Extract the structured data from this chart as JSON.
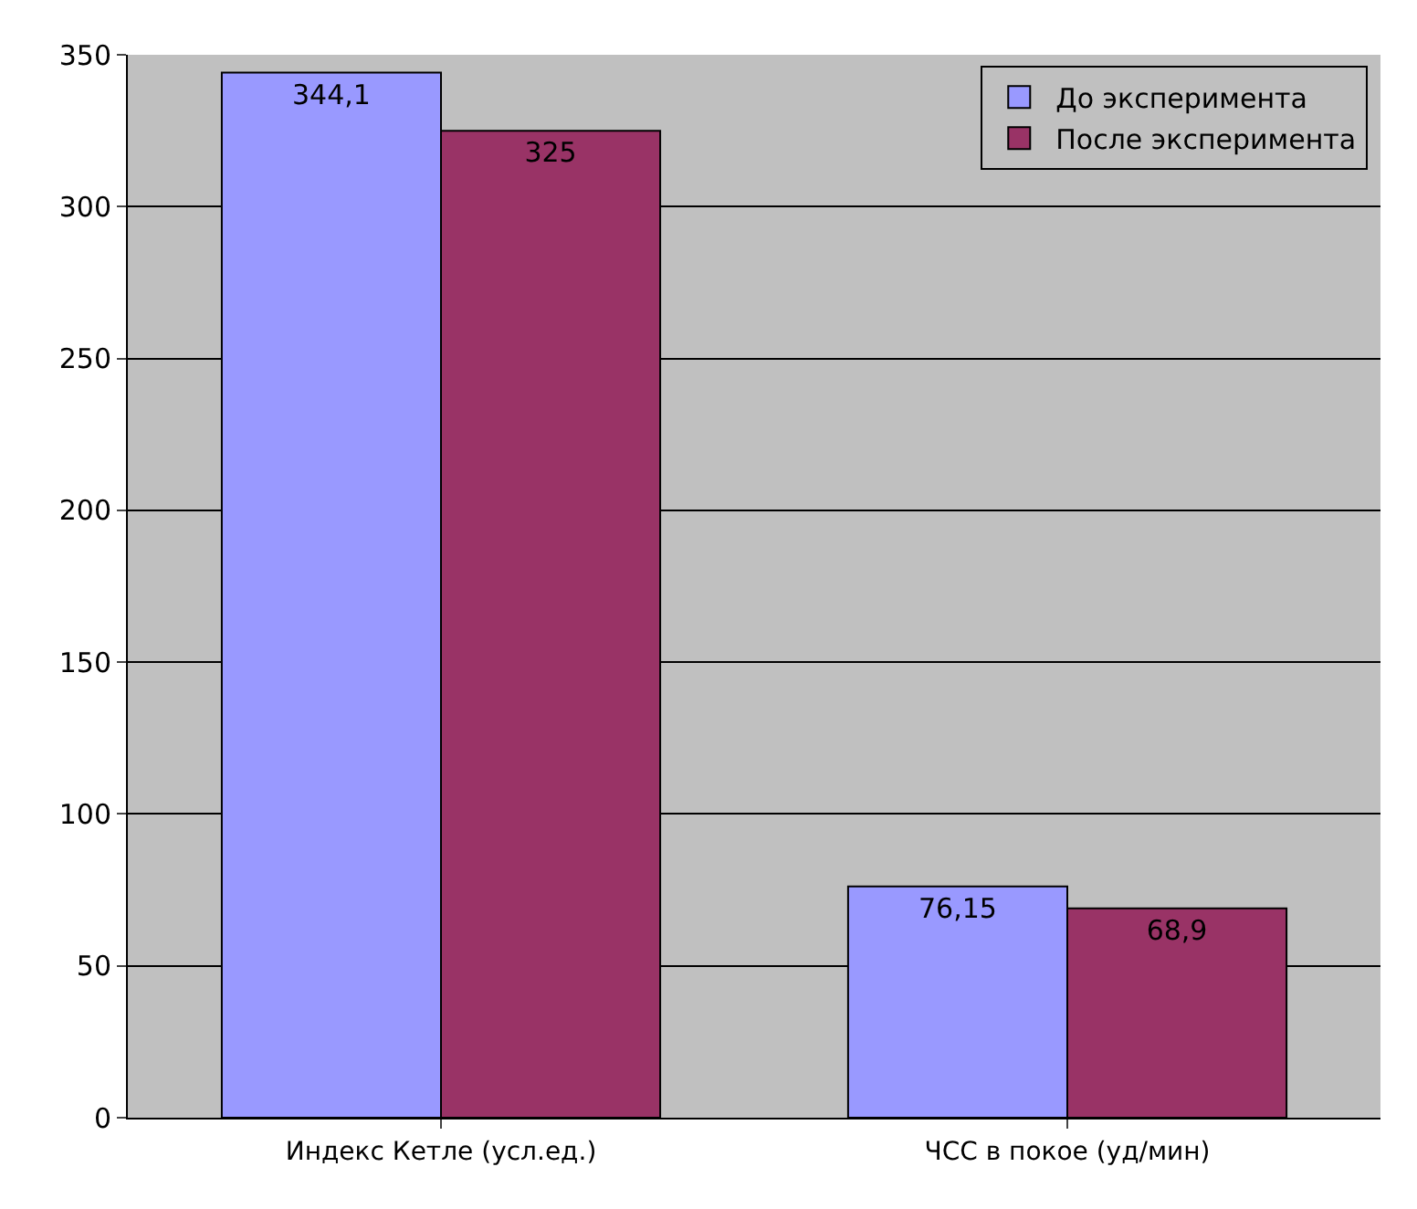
{
  "chart_data": {
    "type": "bar",
    "categories": [
      "Индекс Кетле (усл.ед.)",
      "ЧСС в покое (уд/мин)"
    ],
    "series": [
      {
        "name": "До эксперимента",
        "color": "#9999ff",
        "values": [
          344.1,
          76.15
        ],
        "value_labels": [
          "344,1",
          "76,15"
        ]
      },
      {
        "name": "После эксперимента",
        "color": "#993366",
        "values": [
          325,
          68.9
        ],
        "value_labels": [
          "325",
          "68,9"
        ]
      }
    ],
    "ylim": [
      0,
      350
    ],
    "yticks": [
      0,
      50,
      100,
      150,
      200,
      250,
      300,
      350
    ],
    "grid": "y",
    "legend": "top right"
  }
}
